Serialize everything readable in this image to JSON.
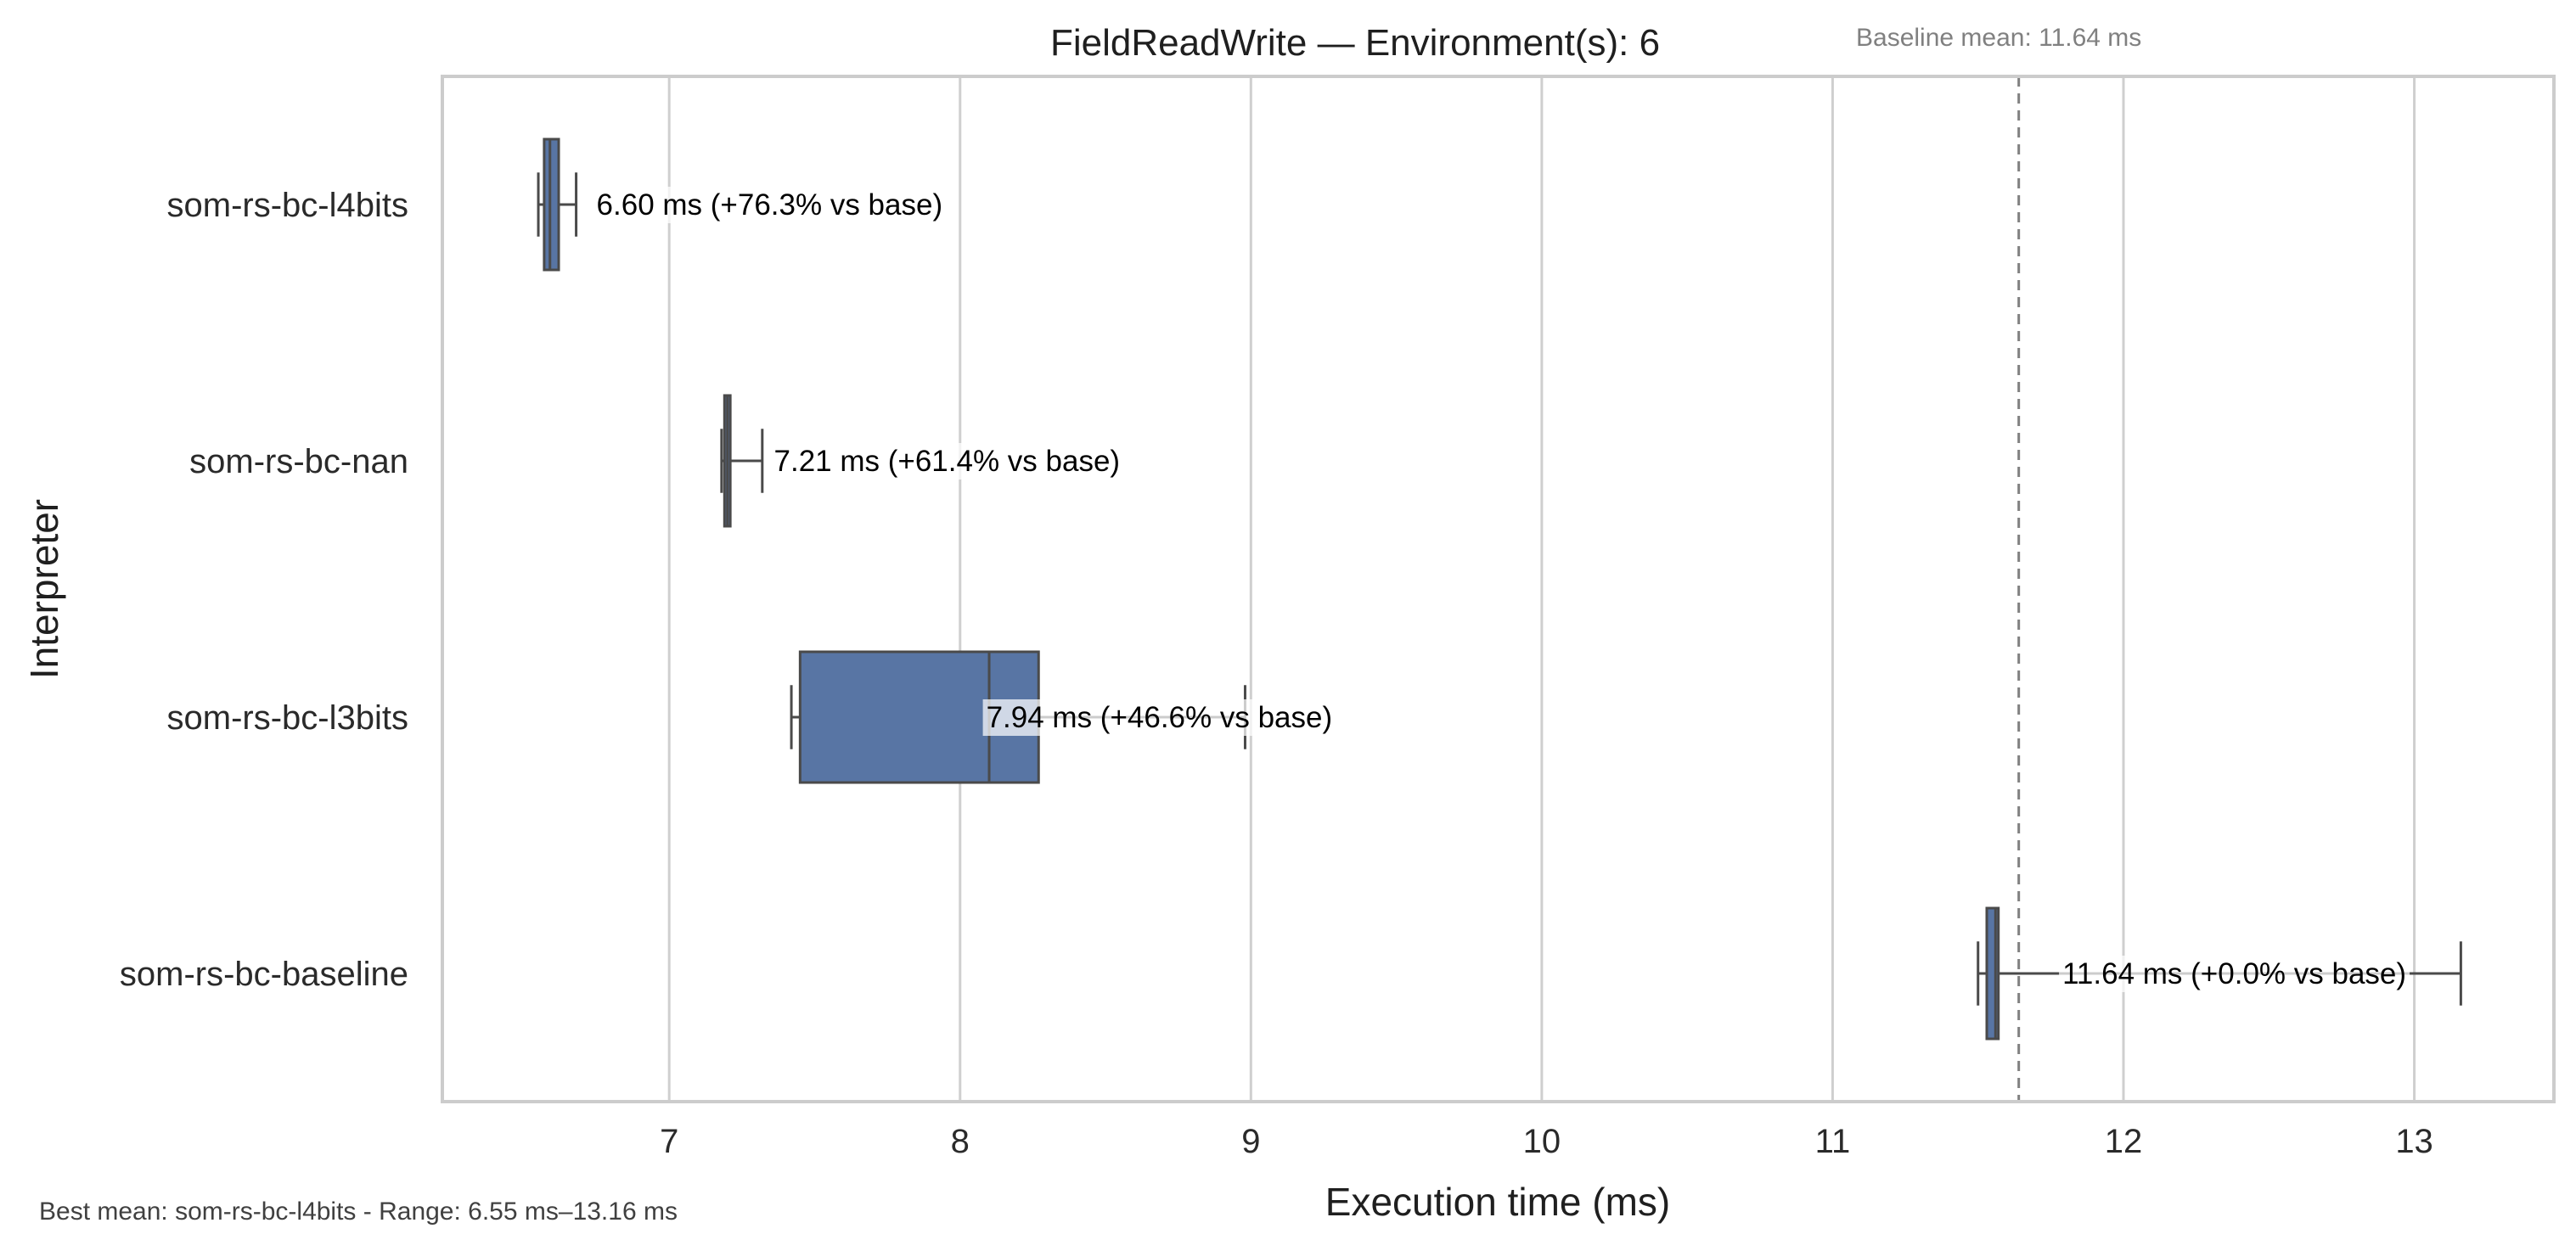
{
  "chart_data": {
    "type": "box",
    "title": "FieldReadWrite — Environment(s): 6",
    "subtitle": "Baseline mean: 11.64 ms",
    "xlabel": "Execution time (ms)",
    "ylabel": "Interpreter",
    "xlim": [
      6.22,
      13.48
    ],
    "xticks": [
      7,
      8,
      9,
      10,
      11,
      12,
      13
    ],
    "grid": "vertical",
    "baseline_mean": 11.64,
    "categories": [
      "som-rs-bc-l4bits",
      "som-rs-bc-nan",
      "som-rs-bc-l3bits",
      "som-rs-bc-baseline"
    ],
    "series": [
      {
        "values": [
          {
            "whisker_low": 6.55,
            "q1": 6.57,
            "median": 6.59,
            "q3": 6.62,
            "whisker_high": 6.68
          },
          {
            "whisker_low": 7.18,
            "q1": 7.19,
            "median": 7.2,
            "q3": 7.21,
            "whisker_high": 7.32
          },
          {
            "whisker_low": 7.42,
            "q1": 7.45,
            "median": 8.1,
            "q3": 8.27,
            "whisker_high": 8.98
          },
          {
            "whisker_low": 11.5,
            "q1": 11.53,
            "median": 11.56,
            "q3": 11.57,
            "whisker_high": 13.16
          }
        ]
      }
    ],
    "annotations": [
      {
        "x": 6.75,
        "text": "6.60 ms  (+76.3% vs base)"
      },
      {
        "x": 7.36,
        "text": "7.21 ms  (+61.4% vs base)"
      },
      {
        "x": 8.09,
        "text": "7.94 ms  (+46.6% vs base)"
      },
      {
        "x": 11.79,
        "text": "11.64 ms  (+0.0% vs base)"
      }
    ],
    "colors": {
      "box": "#5875a4",
      "line": "#4a4a4a",
      "grid": "#cfcfcf",
      "baseline": "#808080",
      "frame": "#cccccc"
    }
  },
  "footer": "Best mean: som-rs-bc-l4bits - Range: 6.55 ms–13.16 ms"
}
